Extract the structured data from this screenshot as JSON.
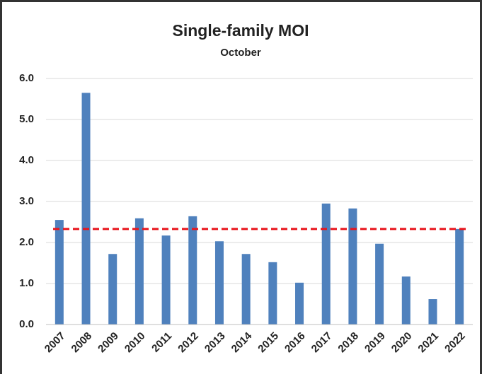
{
  "chart_data": {
    "type": "bar",
    "title": "Single-family MOI",
    "subtitle": "October",
    "categories": [
      "2007",
      "2008",
      "2009",
      "2010",
      "2011",
      "2012",
      "2013",
      "2014",
      "2015",
      "2016",
      "2017",
      "2018",
      "2019",
      "2020",
      "2021",
      "2022"
    ],
    "values": [
      2.55,
      5.65,
      1.72,
      2.59,
      2.17,
      2.64,
      2.03,
      1.72,
      1.52,
      1.02,
      2.95,
      2.83,
      1.97,
      1.17,
      0.62,
      2.33
    ],
    "color": "#4f81bd",
    "reference_line": {
      "value": 2.33,
      "color": "#e8141b"
    },
    "ylim": [
      0,
      6
    ],
    "yticks": [
      {
        "value": 0,
        "label": "0.0"
      },
      {
        "value": 1,
        "label": "1.0"
      },
      {
        "value": 2,
        "label": "2.0"
      },
      {
        "value": 3,
        "label": "3.0"
      },
      {
        "value": 4,
        "label": "4.0"
      },
      {
        "value": 5,
        "label": "5.0"
      },
      {
        "value": 6,
        "label": "6.0"
      }
    ],
    "grid": true
  }
}
